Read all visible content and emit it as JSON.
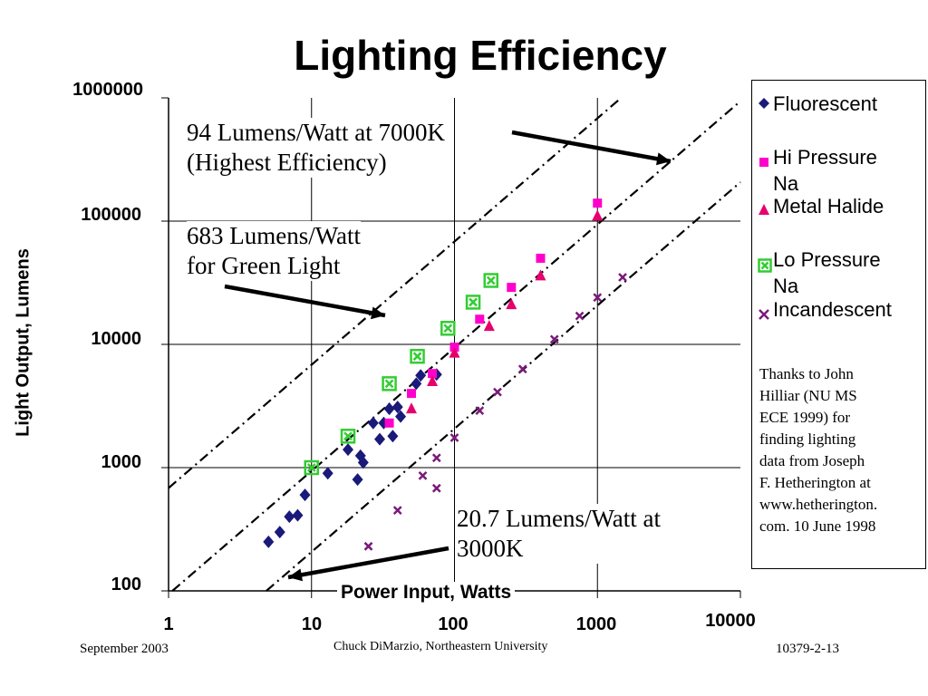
{
  "chart_data": {
    "type": "scatter",
    "title": "Lighting Efficiency",
    "xlabel": "Power Input, Watts",
    "ylabel": "Light Output, Lumens",
    "x_scale": "log",
    "y_scale": "log",
    "xlim": [
      1,
      10000
    ],
    "ylim": [
      100,
      1000000
    ],
    "x_ticks": [
      "1",
      "10",
      "100",
      "1000",
      "10000"
    ],
    "y_ticks": [
      "1000000",
      "100000",
      "10000",
      "1000",
      "100"
    ],
    "grid": true,
    "legend_position": "right",
    "series": [
      {
        "name": "Fluorescent",
        "marker": "diamond",
        "color": "#1a1a7a",
        "points": [
          [
            5,
            250
          ],
          [
            6,
            300
          ],
          [
            7,
            400
          ],
          [
            8,
            410
          ],
          [
            9,
            600
          ],
          [
            13,
            900
          ],
          [
            18,
            1400
          ],
          [
            21,
            800
          ],
          [
            22,
            1250
          ],
          [
            23,
            1100
          ],
          [
            27,
            2300
          ],
          [
            30,
            1700
          ],
          [
            32,
            2300
          ],
          [
            35,
            3000
          ],
          [
            37,
            1800
          ],
          [
            40,
            3100
          ],
          [
            42,
            2600
          ],
          [
            54,
            4800
          ],
          [
            58,
            5600
          ],
          [
            75,
            5700
          ]
        ]
      },
      {
        "name": "Hi Pressure Na",
        "marker": "square",
        "color": "#ff00cc",
        "points": [
          [
            35,
            2300
          ],
          [
            50,
            4000
          ],
          [
            70,
            5800
          ],
          [
            100,
            9500
          ],
          [
            150,
            16000
          ],
          [
            250,
            29000
          ],
          [
            400,
            50000
          ],
          [
            1000,
            140000
          ]
        ]
      },
      {
        "name": "Metal Halide",
        "marker": "triangle",
        "color": "#e6006e",
        "points": [
          [
            50,
            3000
          ],
          [
            70,
            5000
          ],
          [
            100,
            8500
          ],
          [
            175,
            14000
          ],
          [
            250,
            21000
          ],
          [
            400,
            36000
          ],
          [
            1000,
            110000
          ]
        ]
      },
      {
        "name": "Lo Pressure Na",
        "marker": "box-x",
        "color": "#33cc33",
        "points": [
          [
            10,
            1000
          ],
          [
            18,
            1800
          ],
          [
            35,
            4800
          ],
          [
            55,
            8000
          ],
          [
            90,
            13500
          ],
          [
            135,
            22000
          ],
          [
            180,
            33000
          ]
        ]
      },
      {
        "name": "Incandescent",
        "marker": "x",
        "color": "#7a1a7a",
        "points": [
          [
            25,
            230
          ],
          [
            40,
            450
          ],
          [
            60,
            860
          ],
          [
            75,
            680
          ],
          [
            75,
            1200
          ],
          [
            100,
            1750
          ],
          [
            150,
            2900
          ],
          [
            200,
            4100
          ],
          [
            300,
            6300
          ],
          [
            500,
            11000
          ],
          [
            750,
            17000
          ],
          [
            1000,
            24000
          ],
          [
            1500,
            35000
          ]
        ]
      }
    ],
    "reference_lines": [
      {
        "label": "683 Lumens/Watt",
        "efficacy": 683
      },
      {
        "label": "94 Lumens/Watt",
        "efficacy": 94
      },
      {
        "label": "20.7 Lumens/Watt",
        "efficacy": 20.7
      }
    ]
  },
  "annotations": {
    "a94_line1": "94 Lumens/Watt at 7000K",
    "a94_line2": "(Highest Efficiency)",
    "a683_line1": "683 Lumens/Watt",
    "a683_line2": "for Green Light",
    "a207_line1": "20.7 Lumens/Watt at",
    "a207_line2": "3000K"
  },
  "legend": {
    "fluorescent": "Fluorescent",
    "hps_line1": "Hi Pressure",
    "hps_line2": "Na",
    "metal_halide": "Metal Halide",
    "lps_line1": "Lo Pressure",
    "lps_line2": "Na",
    "incandescent": "Incandescent"
  },
  "thanks": [
    "Thanks to John",
    "Hilliar (NU MS",
    "ECE 1999) for",
    "finding lighting",
    "data from  Joseph",
    "F. Hetherington at",
    "www.hetherington.",
    "com. 10 June 1998"
  ],
  "footer": {
    "left": "September 2003",
    "center": "Chuck DiMarzio, Northeastern University",
    "right": "10379-2-13"
  },
  "colors": {
    "fluorescent": "#1a1a7a",
    "hps": "#ff00cc",
    "metal_halide": "#e6006e",
    "lps": "#33cc33",
    "incandescent": "#7a1a7a"
  }
}
